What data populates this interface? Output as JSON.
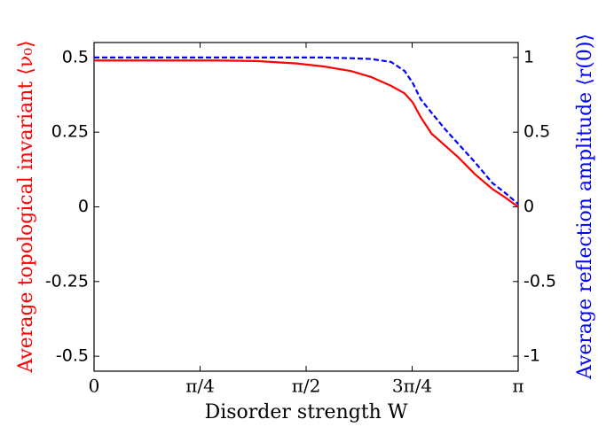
{
  "chart_data": {
    "type": "line",
    "xlabel": "Disorder strength W",
    "ylabel": "Average topological invariant ⟨ν₀⟩",
    "y2label": "Average reflection amplitude ⟨r(0)⟩",
    "x": [
      0,
      0.3,
      0.6,
      0.9,
      1.2,
      1.5,
      1.7,
      1.9,
      2.05,
      2.2,
      2.3,
      2.36,
      2.42,
      2.5,
      2.6,
      2.7,
      2.82,
      2.95,
      3.05,
      3.14
    ],
    "series": [
      {
        "name": "Average topological invariant",
        "color": "#ff0000",
        "style": "solid",
        "axis": "y",
        "values": [
          0.49,
          0.49,
          0.49,
          0.49,
          0.488,
          0.48,
          0.47,
          0.455,
          0.435,
          0.405,
          0.38,
          0.35,
          0.3,
          0.245,
          0.205,
          0.165,
          0.11,
          0.06,
          0.03,
          0.0
        ]
      },
      {
        "name": "Average reflection amplitude",
        "color": "#0000ff",
        "style": "dashed",
        "axis": "y2",
        "values": [
          1.0,
          1.0,
          1.0,
          1.0,
          1.0,
          1.0,
          1.0,
          0.995,
          0.99,
          0.97,
          0.91,
          0.83,
          0.72,
          0.63,
          0.52,
          0.42,
          0.3,
          0.16,
          0.09,
          0.02
        ]
      }
    ],
    "xlim": [
      0,
      3.1416
    ],
    "xticks": [
      0,
      {
        "value": 0.7854,
        "label": "π/4"
      },
      {
        "value": 1.5708,
        "label": "π/2"
      },
      {
        "value": 2.3562,
        "label": "3π/4"
      },
      {
        "value": 3.1416,
        "label": "π"
      }
    ],
    "ylim": [
      -0.55,
      0.55
    ],
    "yticks": [
      -0.5,
      -0.25,
      0,
      0.25,
      0.5
    ],
    "y2lim": [
      -1.1,
      1.1
    ],
    "y2ticks": [
      -1,
      -0.5,
      0,
      0.5,
      1
    ],
    "ylabel_color": "#ff0000",
    "y2label_color": "#0000ff",
    "grid": false
  }
}
